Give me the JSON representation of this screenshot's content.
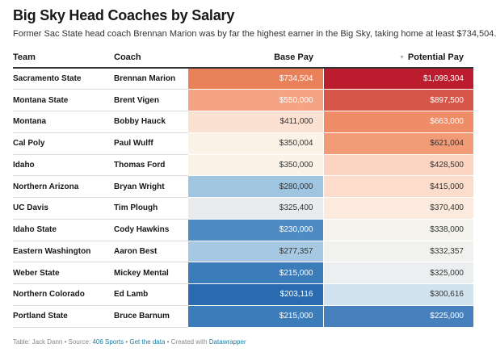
{
  "header": {
    "title": "Big Sky Head Coaches by Salary",
    "subtitle": "Former Sac State head coach Brennan Marion was by far the highest earner in the Big Sky, taking home at least $734,504."
  },
  "table": {
    "columns": {
      "team": "Team",
      "coach": "Coach",
      "base": "Base Pay",
      "potential": "Potential Pay",
      "sort_icon": "sort-descending-icon"
    },
    "rows": [
      {
        "team": "Sacramento State",
        "coach": "Brennan Marion",
        "base": "$734,504",
        "potential": "$1,099,304",
        "base_bg": "#e8805a",
        "base_fg": "#ffffff",
        "pot_bg": "#bb1d2e",
        "pot_fg": "#ffffff"
      },
      {
        "team": "Montana State",
        "coach": "Brent Vigen",
        "base": "$550,000",
        "potential": "$897,500",
        "base_bg": "#f4a484",
        "base_fg": "#ffffff",
        "pot_bg": "#d6574a",
        "pot_fg": "#ffffff"
      },
      {
        "team": "Montana",
        "coach": "Bobby Hauck",
        "base": "$411,000",
        "potential": "$663,000",
        "base_bg": "#fbe1d2",
        "base_fg": "#333333",
        "pot_bg": "#ee8d68",
        "pot_fg": "#ffffff"
      },
      {
        "team": "Cal Poly",
        "coach": "Paul Wulff",
        "base": "$350,004",
        "potential": "$621,004",
        "base_bg": "#fcf3e8",
        "base_fg": "#333333",
        "pot_bg": "#f19b77",
        "pot_fg": "#333333"
      },
      {
        "team": "Idaho",
        "coach": "Thomas Ford",
        "base": "$350,000",
        "potential": "$428,500",
        "base_bg": "#fcf3e8",
        "base_fg": "#333333",
        "pot_bg": "#fbd5c1",
        "pot_fg": "#333333"
      },
      {
        "team": "Northern Arizona",
        "coach": "Bryan Wright",
        "base": "$280,000",
        "potential": "$415,000",
        "base_bg": "#a0c5e0",
        "base_fg": "#333333",
        "pot_bg": "#fcdccb",
        "pot_fg": "#333333"
      },
      {
        "team": "UC Davis",
        "coach": "Tim Plough",
        "base": "$325,400",
        "potential": "$370,400",
        "base_bg": "#e9ecef",
        "base_fg": "#333333",
        "pot_bg": "#fbeadd",
        "pot_fg": "#333333"
      },
      {
        "team": "Idaho State",
        "coach": "Cody Hawkins",
        "base": "$230,000",
        "potential": "$338,000",
        "base_bg": "#4f8bc3",
        "base_fg": "#ffffff",
        "pot_bg": "#f4f3ec",
        "pot_fg": "#333333"
      },
      {
        "team": "Eastern Washington",
        "coach": "Aaron Best",
        "base": "$277,357",
        "potential": "$332,357",
        "base_bg": "#a6c8e2",
        "base_fg": "#333333",
        "pot_bg": "#f1f2ef",
        "pot_fg": "#333333"
      },
      {
        "team": "Weber State",
        "coach": "Mickey Mental",
        "base": "$215,000",
        "potential": "$325,000",
        "base_bg": "#3d7cba",
        "base_fg": "#ffffff",
        "pot_bg": "#eceff0",
        "pot_fg": "#333333"
      },
      {
        "team": "Northern Colorado",
        "coach": "Ed Lamb",
        "base": "$203,116",
        "potential": "$300,616",
        "base_bg": "#2a6bb0",
        "base_fg": "#ffffff",
        "pot_bg": "#d2e3f0",
        "pot_fg": "#333333"
      },
      {
        "team": "Portland State",
        "coach": "Bruce Barnum",
        "base": "$215,000",
        "potential": "$225,000",
        "base_bg": "#3d7cba",
        "base_fg": "#ffffff",
        "pot_bg": "#4781bd",
        "pot_fg": "#ffffff"
      }
    ]
  },
  "footer": {
    "table_credit": "Table: Jack Dann",
    "sep1": " • Source: ",
    "source": "406 Sports",
    "sep2": " • ",
    "get_data": "Get the data",
    "sep3": " • Created with ",
    "tool": "Datawrapper"
  }
}
